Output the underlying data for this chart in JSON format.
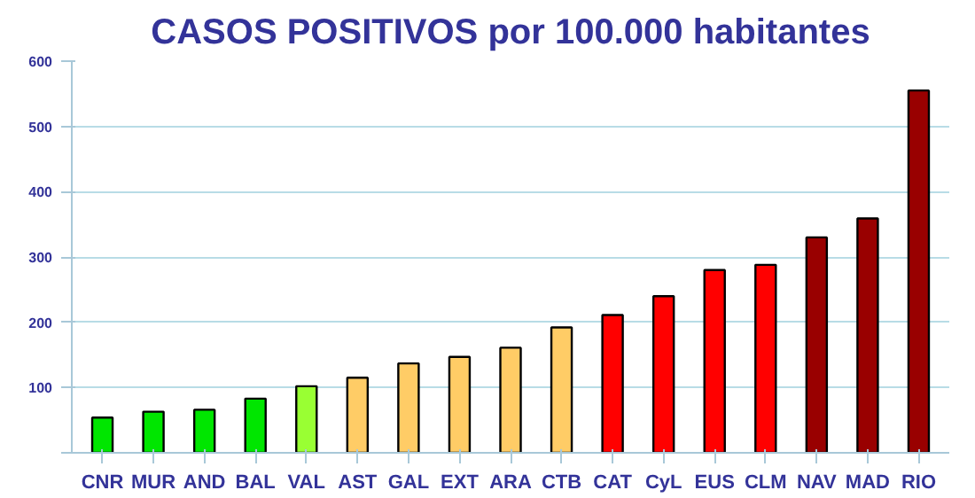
{
  "chart_data": {
    "type": "bar",
    "title": "CASOS POSITIVOS por 100.000 habitantes",
    "categories": [
      "CNR",
      "MUR",
      "AND",
      "BAL",
      "VAL",
      "AST",
      "GAL",
      "EXT",
      "ARA",
      "CTB",
      "CAT",
      "CyL",
      "EUS",
      "CLM",
      "NAV",
      "MAD",
      "RIO"
    ],
    "values": [
      54,
      63,
      66,
      83,
      102,
      115,
      137,
      147,
      161,
      192,
      211,
      240,
      280,
      288,
      330,
      359,
      555
    ],
    "colors": [
      "#00e600",
      "#00e600",
      "#00e600",
      "#00e600",
      "#99ff33",
      "#ffcc66",
      "#ffcc66",
      "#ffcc66",
      "#ffcc66",
      "#ffcc66",
      "#ff0000",
      "#ff0000",
      "#ff0000",
      "#ff0000",
      "#990000",
      "#990000",
      "#990000"
    ],
    "ylim": [
      0,
      600
    ],
    "yticks": [
      {
        "value": 0,
        "label": null
      },
      100,
      200,
      300,
      400,
      500,
      600
    ],
    "grid": "y"
  }
}
